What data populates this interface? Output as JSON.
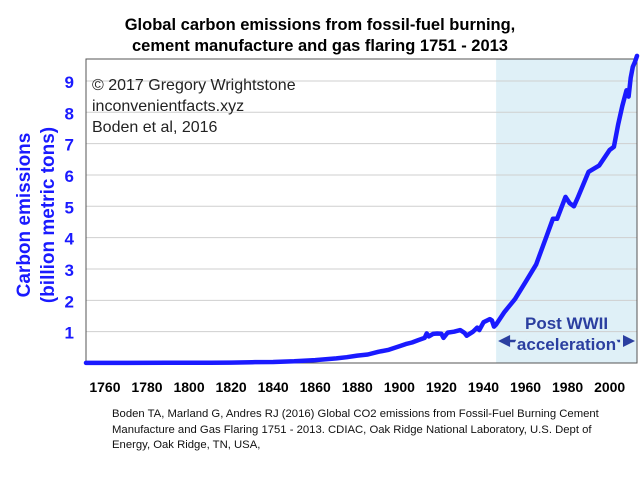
{
  "chart_data": {
    "type": "line",
    "title": "Global carbon emissions from fossil-fuel burning,",
    "subtitle": "cement manufacture and gas flaring 1751 - 2013",
    "ylabel": "Carbon emissions",
    "ylabel_unit": "(billion metric tons)",
    "xlim": [
      1751,
      2013
    ],
    "ylim": [
      0,
      9.7
    ],
    "x_ticks": [
      1760,
      1780,
      1800,
      1820,
      1840,
      1860,
      1880,
      1900,
      1920,
      1940,
      1960,
      1980,
      2000
    ],
    "y_ticks": [
      1,
      2,
      3,
      4,
      5,
      6,
      7,
      8,
      9
    ],
    "grid": "horizontal",
    "line_color": "#1a1aff",
    "highlight": {
      "start": 1946,
      "end": 2013,
      "color": "#dff0f7"
    },
    "annotation": {
      "line1": "Post WWII",
      "line2": "acceleration",
      "color": "#2b3fa0"
    },
    "credits": [
      "© 2017 Gregory Wrightstone",
      "inconvenientfacts.xyz",
      "Boden et al, 2016"
    ],
    "series": [
      {
        "x": [
          1751,
          1770,
          1790,
          1800,
          1810,
          1820,
          1830,
          1840,
          1850,
          1860,
          1865,
          1870,
          1875,
          1880,
          1885,
          1890,
          1895,
          1900,
          1903,
          1906,
          1909,
          1912,
          1913,
          1914,
          1916,
          1918,
          1920,
          1921,
          1923,
          1926,
          1929,
          1931,
          1932,
          1935,
          1937,
          1938,
          1940,
          1943,
          1944,
          1945,
          1946,
          1950,
          1955,
          1960,
          1965,
          1970,
          1973,
          1975,
          1979,
          1981,
          1983,
          1985,
          1990,
          1995,
          2000,
          2002,
          2004,
          2006,
          2008,
          2009,
          2010,
          2011,
          2012,
          2013
        ],
        "y": [
          0.003,
          0.003,
          0.005,
          0.008,
          0.011,
          0.014,
          0.024,
          0.033,
          0.054,
          0.091,
          0.12,
          0.147,
          0.185,
          0.236,
          0.27,
          0.356,
          0.42,
          0.534,
          0.604,
          0.653,
          0.73,
          0.8,
          0.943,
          0.85,
          0.93,
          0.94,
          0.932,
          0.8,
          0.97,
          1.0,
          1.05,
          0.96,
          0.87,
          1.0,
          1.13,
          1.05,
          1.3,
          1.4,
          1.36,
          1.16,
          1.23,
          1.63,
          2.04,
          2.58,
          3.14,
          4.05,
          4.6,
          4.6,
          5.3,
          5.1,
          5.0,
          5.3,
          6.1,
          6.3,
          6.8,
          6.9,
          7.6,
          8.2,
          8.7,
          8.5,
          9.1,
          9.45,
          9.6,
          9.8
        ]
      }
    ]
  },
  "source_note": "Boden TA, Marland G, Andres RJ (2016) Global CO2 emissions from Fossil-Fuel Burning Cement Manufacture and Gas Flaring 1751 - 2013. CDIAC, Oak Ridge National Laboratory, U.S. Dept of Energy, Oak Ridge, TN, USA,"
}
